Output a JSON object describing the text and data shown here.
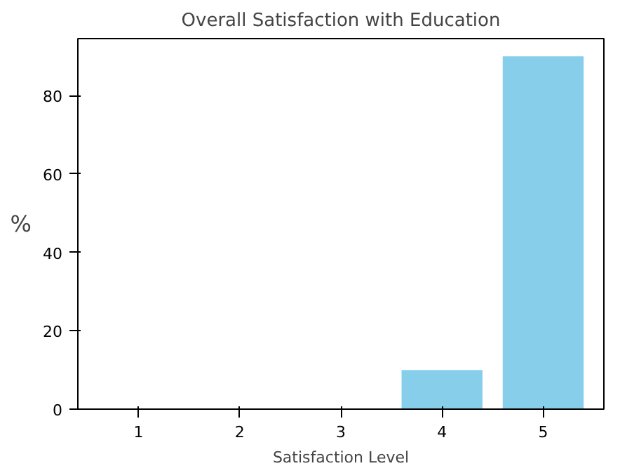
{
  "chart_data": {
    "type": "bar",
    "title": "Overall Satisfaction with Education",
    "xlabel": "Satisfaction Level",
    "ylabel": "%",
    "categories": [
      "1",
      "2",
      "3",
      "4",
      "5"
    ],
    "values": [
      0,
      0,
      0,
      10,
      90
    ],
    "color": "#87ceeb",
    "ylim": [
      0,
      94.5
    ],
    "yticks": [
      0,
      20,
      40,
      60,
      80
    ],
    "grid": false
  }
}
